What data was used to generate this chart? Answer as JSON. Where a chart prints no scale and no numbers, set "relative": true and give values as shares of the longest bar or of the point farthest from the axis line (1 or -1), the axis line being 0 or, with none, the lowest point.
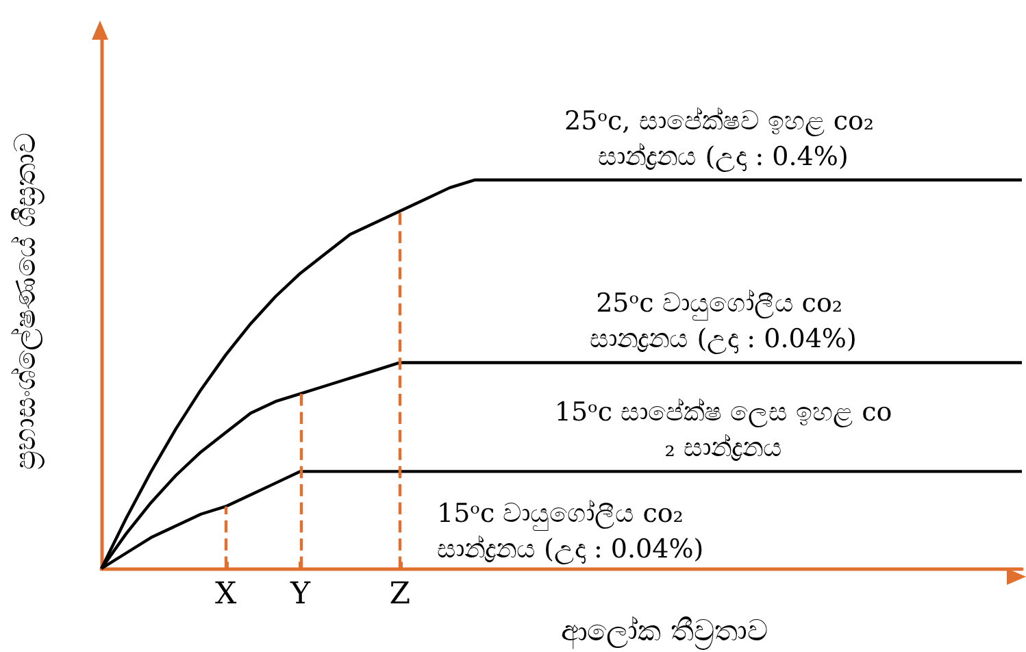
{
  "chart_data": {
    "type": "line",
    "relative": true,
    "xlabel": "ආලෝක තීව්‍රතාව",
    "ylabel": "ප්‍රභාසංශ්ලේෂණයේ ශීඝ්‍රතාව",
    "categories": [
      null,
      null,
      null,
      null,
      null,
      "X",
      null,
      null,
      "Y",
      null,
      null,
      null,
      "Z",
      null,
      null,
      null,
      null,
      null,
      null,
      null,
      null,
      null,
      null,
      null,
      null,
      null,
      null,
      null,
      null,
      null,
      null,
      null,
      null,
      null,
      null,
      null,
      null,
      null
    ],
    "series": [
      {
        "name": "15ᵒc සාපේක්ෂ ලෙස ඉහළ co₂ සාන්ද්‍රනය",
        "color": "#000000",
        "values": [
          0,
          0.04,
          0.08,
          0.11,
          0.14,
          0.16,
          0.19,
          0.22,
          0.25,
          0.25,
          0.25,
          0.25,
          0.25,
          0.25,
          0.25,
          0.25,
          0.25,
          0.25,
          0.25,
          0.25,
          0.25,
          0.25,
          0.25,
          0.25,
          0.25,
          0.25,
          0.25,
          0.25,
          0.25,
          0.25,
          0.25,
          0.25,
          0.25,
          0.25,
          0.25,
          0.25,
          0.25,
          0.25
        ]
      },
      {
        "name": "25ᵒc වායුගෝලීය co₂ සානද්‍රනය (උදා : 0.04%)",
        "color": "#000000",
        "values": [
          0,
          0.09,
          0.17,
          0.24,
          0.3,
          0.35,
          0.4,
          0.43,
          0.45,
          0.47,
          0.49,
          0.51,
          0.53,
          0.53,
          0.53,
          0.53,
          0.53,
          0.53,
          0.53,
          0.53,
          0.53,
          0.53,
          0.53,
          0.53,
          0.53,
          0.53,
          0.53,
          0.53,
          0.53,
          0.53,
          0.53,
          0.53,
          0.53,
          0.53,
          0.53,
          0.53,
          0.53,
          0.53
        ]
      },
      {
        "name": "25ᵒc, සාපේක්ෂව ඉහළ co₂ සාන්ද්‍රනය (උදා : 0.4%)",
        "color": "#000000",
        "values": [
          0,
          0.13,
          0.25,
          0.36,
          0.46,
          0.55,
          0.63,
          0.7,
          0.76,
          0.81,
          0.86,
          0.89,
          0.92,
          0.95,
          0.98,
          1,
          1,
          1,
          1,
          1,
          1,
          1,
          1,
          1,
          1,
          1,
          1,
          1,
          1,
          1,
          1,
          1,
          1,
          1,
          1,
          1,
          1,
          1
        ]
      }
    ],
    "ref_lines": [
      {
        "axis": "x",
        "value": "X",
        "color": "#e07030",
        "line_style": "dashed"
      },
      {
        "axis": "x",
        "value": "Y",
        "color": "#e07030",
        "line_style": "dashed"
      },
      {
        "axis": "x",
        "value": "Z",
        "color": "#e07030",
        "line_style": "dashed"
      }
    ],
    "annotations": [
      "15ᵒc වායුගෝලීය co₂ සාන්ද්‍රනය (උදා : 0.04%)"
    ],
    "marker": "none",
    "grid": false,
    "legend": false
  }
}
